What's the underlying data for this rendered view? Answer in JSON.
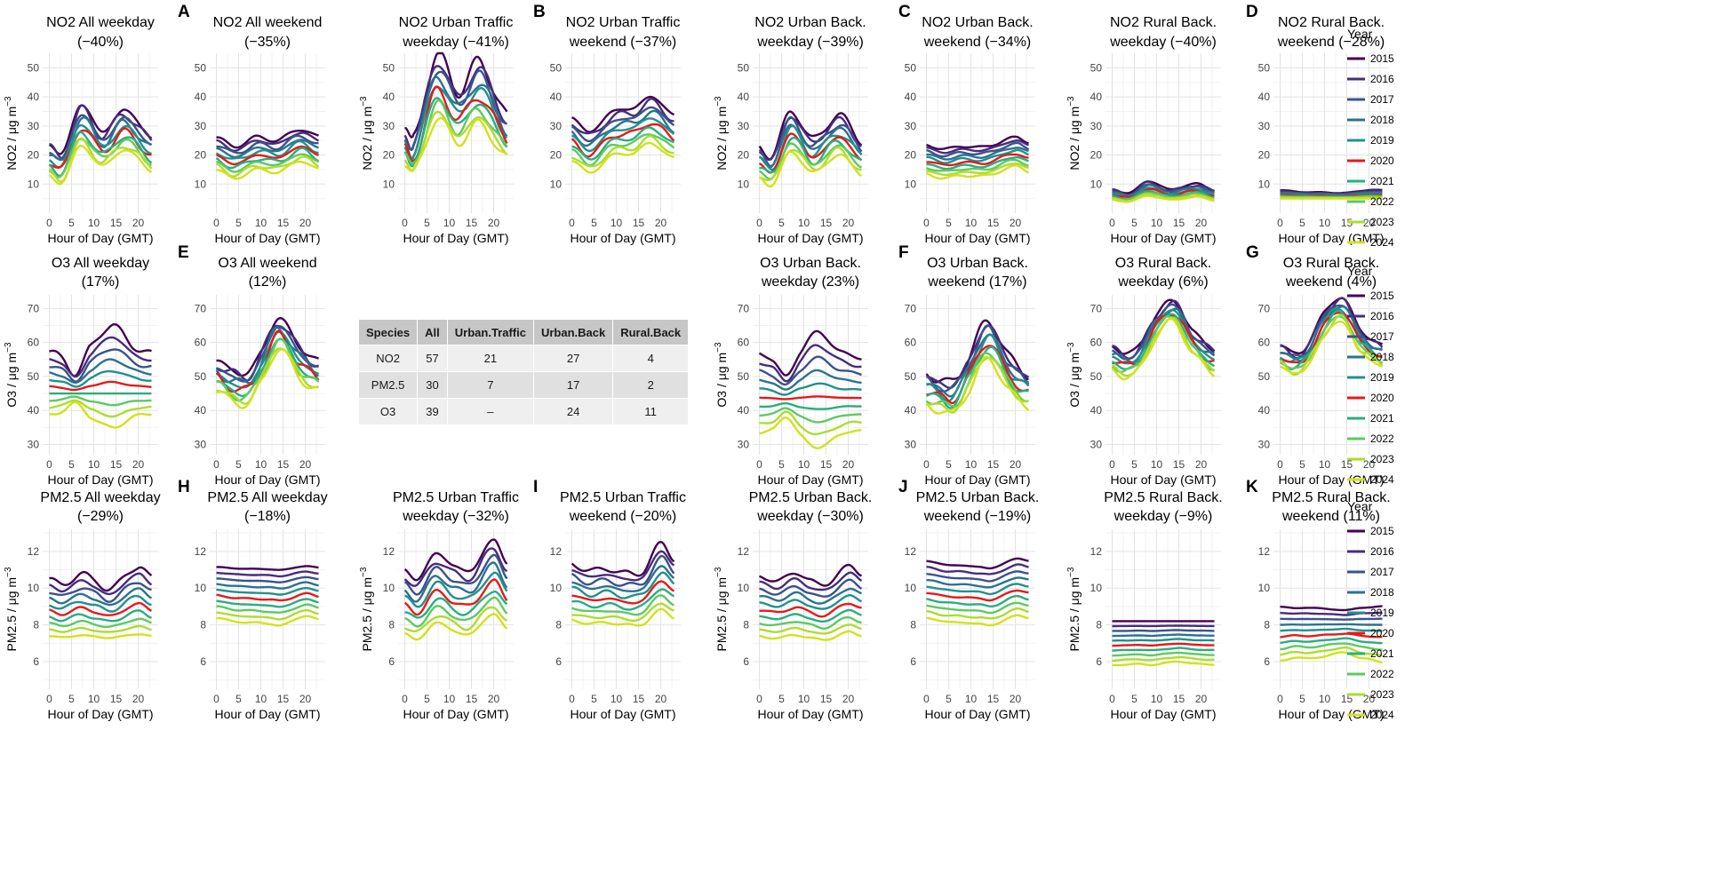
{
  "common": {
    "x_label": "Hour of Day (GMT)",
    "x_ticks": [
      0,
      5,
      10,
      15,
      20
    ],
    "legend_title": "Year",
    "years": [
      "2015",
      "2016",
      "2017",
      "2018",
      "2019",
      "2020",
      "2021",
      "2022",
      "2023",
      "2024"
    ],
    "year_colors": [
      "#440154",
      "#472d7b",
      "#3b528b",
      "#2c728e",
      "#21918c",
      "#e41a1c",
      "#28ae80",
      "#5ec962",
      "#addc30",
      "#d2e21b"
    ]
  },
  "table": {
    "headers": [
      "Species",
      "All",
      "Urban.Traffic",
      "Urban.Back",
      "Rural.Back"
    ],
    "rows": [
      [
        "NO2",
        "57",
        "21",
        "27",
        "4"
      ],
      [
        "PM2.5",
        "30",
        "7",
        "17",
        "2"
      ],
      [
        "O3",
        "39",
        "–",
        "24",
        "11"
      ]
    ]
  },
  "chart_data": [
    {
      "type": "line",
      "row": 0,
      "col": 0,
      "panel_letter": "",
      "title": [
        "NO2 All weekday",
        "(−40%)"
      ],
      "ylabel": "NO2 / μg m",
      "ylabel_sup": "−3",
      "ylim": [
        0,
        55
      ],
      "yticks": [
        10,
        20,
        30,
        40,
        50
      ],
      "x": [
        0,
        3,
        7,
        12,
        17,
        23
      ],
      "shape": [
        0.42,
        0.33,
        0.9,
        0.58,
        0.85,
        0.5
      ],
      "range": {
        "max": [
          21,
          37
        ],
        "min": [
          11,
          23
        ]
      }
    },
    {
      "type": "line",
      "row": 0,
      "col": 1,
      "panel_letter": "A",
      "title": [
        "NO2 All weekend",
        "(−35%)"
      ],
      "ylabel": "",
      "ylim": [
        0,
        55
      ],
      "yticks": [
        10,
        20,
        30,
        40,
        50
      ],
      "x": [
        0,
        4,
        9,
        14,
        19,
        23
      ],
      "shape": [
        0.62,
        0.38,
        0.62,
        0.55,
        0.85,
        0.62
      ],
      "range": {
        "max": [
          23,
          29
        ],
        "min": [
          12,
          18
        ]
      }
    },
    {
      "type": "line",
      "row": 0,
      "col": 2,
      "panel_letter": "",
      "title": [
        "NO2 Urban Traffic",
        "weekday (−41%)"
      ],
      "ylabel": "NO2 / μg m",
      "ylabel_sup": "−3",
      "ylim": [
        0,
        55
      ],
      "yticks": [
        10,
        20,
        30,
        40,
        50
      ],
      "x": [
        0,
        2,
        7,
        12,
        17,
        23
      ],
      "shape": [
        0.42,
        0.32,
        1.0,
        0.72,
        0.95,
        0.5
      ],
      "range": {
        "max": [
          25,
          54
        ],
        "min": [
          14,
          32
        ]
      }
    },
    {
      "type": "line",
      "row": 0,
      "col": 3,
      "panel_letter": "B",
      "title": [
        "NO2 Urban Traffic",
        "weekend (−37%)"
      ],
      "ylabel": "",
      "ylim": [
        0,
        55
      ],
      "yticks": [
        10,
        20,
        30,
        40,
        50
      ],
      "x": [
        0,
        4,
        9,
        14,
        18,
        23
      ],
      "shape": [
        0.58,
        0.32,
        0.68,
        0.75,
        0.95,
        0.62
      ],
      "range": {
        "max": [
          28,
          40
        ],
        "min": [
          14,
          24
        ]
      }
    },
    {
      "type": "line",
      "row": 0,
      "col": 4,
      "panel_letter": "",
      "title": [
        "NO2 Urban Back.",
        "weekday (−39%)"
      ],
      "ylabel": "NO2 / μg m",
      "ylabel_sup": "−3",
      "ylim": [
        0,
        55
      ],
      "yticks": [
        10,
        20,
        30,
        40,
        50
      ],
      "x": [
        0,
        3,
        7,
        12,
        18,
        23
      ],
      "shape": [
        0.42,
        0.3,
        0.9,
        0.52,
        0.85,
        0.48
      ],
      "range": {
        "max": [
          20,
          35
        ],
        "min": [
          10,
          21
        ]
      }
    },
    {
      "type": "line",
      "row": 0,
      "col": 5,
      "panel_letter": "C",
      "title": [
        "NO2 Urban Back.",
        "weekend (−34%)"
      ],
      "ylabel": "",
      "ylim": [
        0,
        55
      ],
      "yticks": [
        10,
        20,
        30,
        40,
        50
      ],
      "x": [
        0,
        4,
        8,
        13,
        20,
        23
      ],
      "shape": [
        0.58,
        0.38,
        0.52,
        0.48,
        0.9,
        0.7
      ],
      "range": {
        "max": [
          22,
          26
        ],
        "min": [
          12,
          16
        ]
      }
    },
    {
      "type": "line",
      "row": 0,
      "col": 6,
      "panel_letter": "",
      "title": [
        "NO2 Rural Back.",
        "weekday (−40%)"
      ],
      "ylabel": "NO2 / μg m",
      "ylabel_sup": "−3",
      "ylim": [
        0,
        55
      ],
      "yticks": [
        10,
        20,
        30,
        40,
        50
      ],
      "x": [
        0,
        4,
        8,
        13,
        19,
        23
      ],
      "shape": [
        0.6,
        0.45,
        0.95,
        0.6,
        0.85,
        0.55
      ],
      "range": {
        "max": [
          7,
          11
        ],
        "min": [
          4,
          6
        ]
      }
    },
    {
      "type": "line",
      "row": 0,
      "col": 7,
      "panel_letter": "D",
      "title": [
        "NO2 Rural Back.",
        "weekend (−28%)"
      ],
      "ylabel": "",
      "ylim": [
        0,
        55
      ],
      "yticks": [
        10,
        20,
        30,
        40,
        50
      ],
      "x": [
        0,
        5,
        10,
        15,
        20,
        23
      ],
      "shape": [
        0.8,
        0.6,
        0.55,
        0.5,
        0.85,
        0.8
      ],
      "range": {
        "max": [
          7,
          8
        ],
        "min": [
          5,
          5
        ]
      }
    },
    {
      "type": "line",
      "row": 1,
      "col": 0,
      "panel_letter": "",
      "title": [
        "O3 All weekday",
        "(17%)"
      ],
      "ylabel": "O3 / μg m",
      "ylabel_sup": "−3",
      "ylim": [
        27,
        74
      ],
      "yticks": [
        30,
        40,
        50,
        60,
        70
      ],
      "x": [
        0,
        3,
        6,
        9,
        14,
        19,
        23
      ],
      "shape": [
        0.5,
        0.35,
        0.08,
        0.55,
        1.0,
        0.6,
        0.45
      ],
      "range": {
        "max": [
          51,
          65
        ],
        "min": [
          42,
          35
        ]
      }
    },
    {
      "type": "line",
      "row": 1,
      "col": 1,
      "panel_letter": "E",
      "title": [
        "O3 All weekend",
        "(12%)"
      ],
      "ylabel": "",
      "ylim": [
        27,
        74
      ],
      "yticks": [
        30,
        40,
        50,
        60,
        70
      ],
      "x": [
        0,
        3,
        7,
        10,
        14,
        19,
        23
      ],
      "shape": [
        0.5,
        0.4,
        0.35,
        0.6,
        1.0,
        0.65,
        0.5
      ],
      "range": {
        "max": [
          51,
          67
        ],
        "min": [
          42,
          58
        ]
      }
    },
    {
      "type": "line",
      "row": 1,
      "col": 4,
      "panel_letter": "",
      "title": [
        "O3 Urban Back.",
        "weekday (23%)"
      ],
      "ylabel": "O3 / μg m",
      "ylabel_sup": "−3",
      "ylim": [
        27,
        74
      ],
      "yticks": [
        30,
        40,
        50,
        60,
        70
      ],
      "x": [
        0,
        3,
        6,
        9,
        13,
        18,
        23
      ],
      "shape": [
        0.55,
        0.4,
        0.05,
        0.55,
        1.0,
        0.6,
        0.45
      ],
      "range": {
        "max": [
          50,
          63
        ],
        "min": [
          38,
          29
        ]
      }
    },
    {
      "type": "line",
      "row": 1,
      "col": 5,
      "panel_letter": "F",
      "title": [
        "O3 Urban Back.",
        "weekend (17%)"
      ],
      "ylabel": "",
      "ylim": [
        27,
        74
      ],
      "yticks": [
        30,
        40,
        50,
        60,
        70
      ],
      "x": [
        0,
        3,
        6,
        9,
        14,
        19,
        23
      ],
      "shape": [
        0.45,
        0.4,
        0.35,
        0.6,
        1.0,
        0.6,
        0.45
      ],
      "range": {
        "max": [
          48,
          66
        ],
        "min": [
          39,
          55
        ]
      }
    },
    {
      "type": "line",
      "row": 1,
      "col": 6,
      "panel_letter": "",
      "title": [
        "O3 Rural Back.",
        "weekday (6%)"
      ],
      "ylabel": "O3 / μg m",
      "ylabel_sup": "−3",
      "ylim": [
        27,
        74
      ],
      "yticks": [
        30,
        40,
        50,
        60,
        70
      ],
      "x": [
        0,
        3,
        6,
        10,
        14,
        18,
        23
      ],
      "shape": [
        0.3,
        0.2,
        0.3,
        0.8,
        1.0,
        0.55,
        0.25
      ],
      "range": {
        "max": [
          57,
          72
        ],
        "min": [
          50,
          66
        ]
      }
    },
    {
      "type": "line",
      "row": 1,
      "col": 7,
      "panel_letter": "G",
      "title": [
        "O3 Rural Back.",
        "weekend (4%)"
      ],
      "ylabel": "",
      "ylim": [
        27,
        74
      ],
      "yticks": [
        30,
        40,
        50,
        60,
        70
      ],
      "x": [
        0,
        3,
        6,
        10,
        14,
        18,
        23
      ],
      "shape": [
        0.3,
        0.2,
        0.3,
        0.8,
        1.0,
        0.55,
        0.3
      ],
      "range": {
        "max": [
          57,
          73
        ],
        "min": [
          51,
          66
        ]
      }
    },
    {
      "type": "line",
      "row": 2,
      "col": 0,
      "panel_letter": "",
      "title": [
        "PM2.5 All weekday",
        "(−29%)"
      ],
      "ylabel": "PM2.5 / μg m",
      "ylabel_sup": "−3",
      "ylim": [
        4.5,
        13.2
      ],
      "yticks": [
        6,
        8,
        10,
        12
      ],
      "x": [
        0,
        3,
        7,
        10,
        14,
        20,
        23
      ],
      "shape": [
        0.75,
        0.6,
        0.85,
        0.7,
        0.55,
        1.0,
        0.75
      ],
      "range": {
        "max": [
          10,
          11.2
        ],
        "min": [
          7.3,
          7.5
        ]
      }
    },
    {
      "type": "line",
      "row": 2,
      "col": 1,
      "panel_letter": "H",
      "title": [
        "PM2.5 All weekday",
        "(−18%)"
      ],
      "ylabel": "",
      "ylim": [
        4.5,
        13.2
      ],
      "yticks": [
        6,
        8,
        10,
        12
      ],
      "x": [
        0,
        4,
        8,
        12,
        15,
        20,
        23
      ],
      "shape": [
        0.75,
        0.45,
        0.35,
        0.25,
        0.15,
        0.95,
        0.6
      ],
      "range": {
        "max": [
          11,
          11.2
        ],
        "min": [
          8,
          8.5
        ]
      }
    },
    {
      "type": "line",
      "row": 2,
      "col": 2,
      "panel_letter": "",
      "title": [
        "PM2.5 Urban Traffic",
        "weekday (−32%)"
      ],
      "ylabel": "PM2.5 / μg m",
      "ylabel_sup": "−3",
      "ylim": [
        4.5,
        13.2
      ],
      "yticks": [
        6,
        8,
        10,
        12
      ],
      "x": [
        0,
        3,
        7,
        11,
        15,
        20,
        23
      ],
      "shape": [
        0.55,
        0.4,
        0.8,
        0.6,
        0.55,
        1.0,
        0.65
      ],
      "range": {
        "max": [
          10.5,
          12.6
        ],
        "min": [
          7.2,
          8.6
        ]
      }
    },
    {
      "type": "line",
      "row": 2,
      "col": 3,
      "panel_letter": "I",
      "title": [
        "PM2.5 Urban Traffic",
        "weekend (−20%)"
      ],
      "ylabel": "",
      "ylim": [
        4.5,
        13.2
      ],
      "yticks": [
        6,
        8,
        10,
        12
      ],
      "x": [
        0,
        4,
        8,
        12,
        16,
        20,
        23
      ],
      "shape": [
        0.6,
        0.45,
        0.5,
        0.4,
        0.45,
        1.0,
        0.7
      ],
      "range": {
        "max": [
          10.8,
          12.4
        ],
        "min": [
          8,
          8.8
        ]
      }
    },
    {
      "type": "line",
      "row": 2,
      "col": 4,
      "panel_letter": "",
      "title": [
        "PM2.5 Urban Back.",
        "weekday (−30%)"
      ],
      "ylabel": "PM2.5 / μg m",
      "ylabel_sup": "−3",
      "ylim": [
        4.5,
        13.2
      ],
      "yticks": [
        6,
        8,
        10,
        12
      ],
      "x": [
        0,
        4,
        8,
        11,
        15,
        20,
        23
      ],
      "shape": [
        0.7,
        0.55,
        0.8,
        0.6,
        0.45,
        1.0,
        0.75
      ],
      "range": {
        "max": [
          10.2,
          11.2
        ],
        "min": [
          7.2,
          7.6
        ]
      }
    },
    {
      "type": "line",
      "row": 2,
      "col": 5,
      "panel_letter": "J",
      "title": [
        "PM2.5 Urban Back.",
        "weekend (−19%)"
      ],
      "ylabel": "",
      "ylim": [
        4.5,
        13.2
      ],
      "yticks": [
        6,
        8,
        10,
        12
      ],
      "x": [
        0,
        4,
        8,
        12,
        15,
        20,
        23
      ],
      "shape": [
        0.75,
        0.45,
        0.35,
        0.25,
        0.15,
        0.95,
        0.75
      ],
      "range": {
        "max": [
          11.1,
          11.6
        ],
        "min": [
          8,
          8.5
        ]
      }
    },
    {
      "type": "line",
      "row": 2,
      "col": 6,
      "panel_letter": "",
      "title": [
        "PM2.5 Rural Back.",
        "weekday (−9%)"
      ],
      "ylabel": "PM2.5 / μg m",
      "ylabel_sup": "−3",
      "ylim": [
        4.5,
        13.2
      ],
      "yticks": [
        6,
        8,
        10,
        12
      ],
      "x": [
        0,
        3,
        6,
        9,
        12,
        15,
        18,
        21,
        23
      ],
      "shape": [
        0.9,
        0.8,
        0.7,
        0.85,
        0.55,
        0.35,
        0.6,
        0.75,
        0.8
      ],
      "range": {
        "max": [
          8.2,
          8.2
        ],
        "min": [
          6.0,
          5.8
        ]
      }
    },
    {
      "type": "line",
      "row": 2,
      "col": 7,
      "panel_letter": "K",
      "title": [
        "PM2.5 Rural Back.",
        "weekend (11%)"
      ],
      "ylabel": "",
      "ylim": [
        4.5,
        13.2
      ],
      "yticks": [
        6,
        8,
        10,
        12
      ],
      "x": [
        0,
        3,
        6,
        9,
        12,
        15,
        18,
        21,
        23
      ],
      "shape": [
        0.85,
        0.6,
        0.7,
        0.55,
        0.4,
        0.25,
        0.65,
        0.8,
        0.9
      ],
      "range": {
        "max": [
          8.8,
          9
        ],
        "min": [
          6.5,
          6
        ]
      }
    }
  ]
}
